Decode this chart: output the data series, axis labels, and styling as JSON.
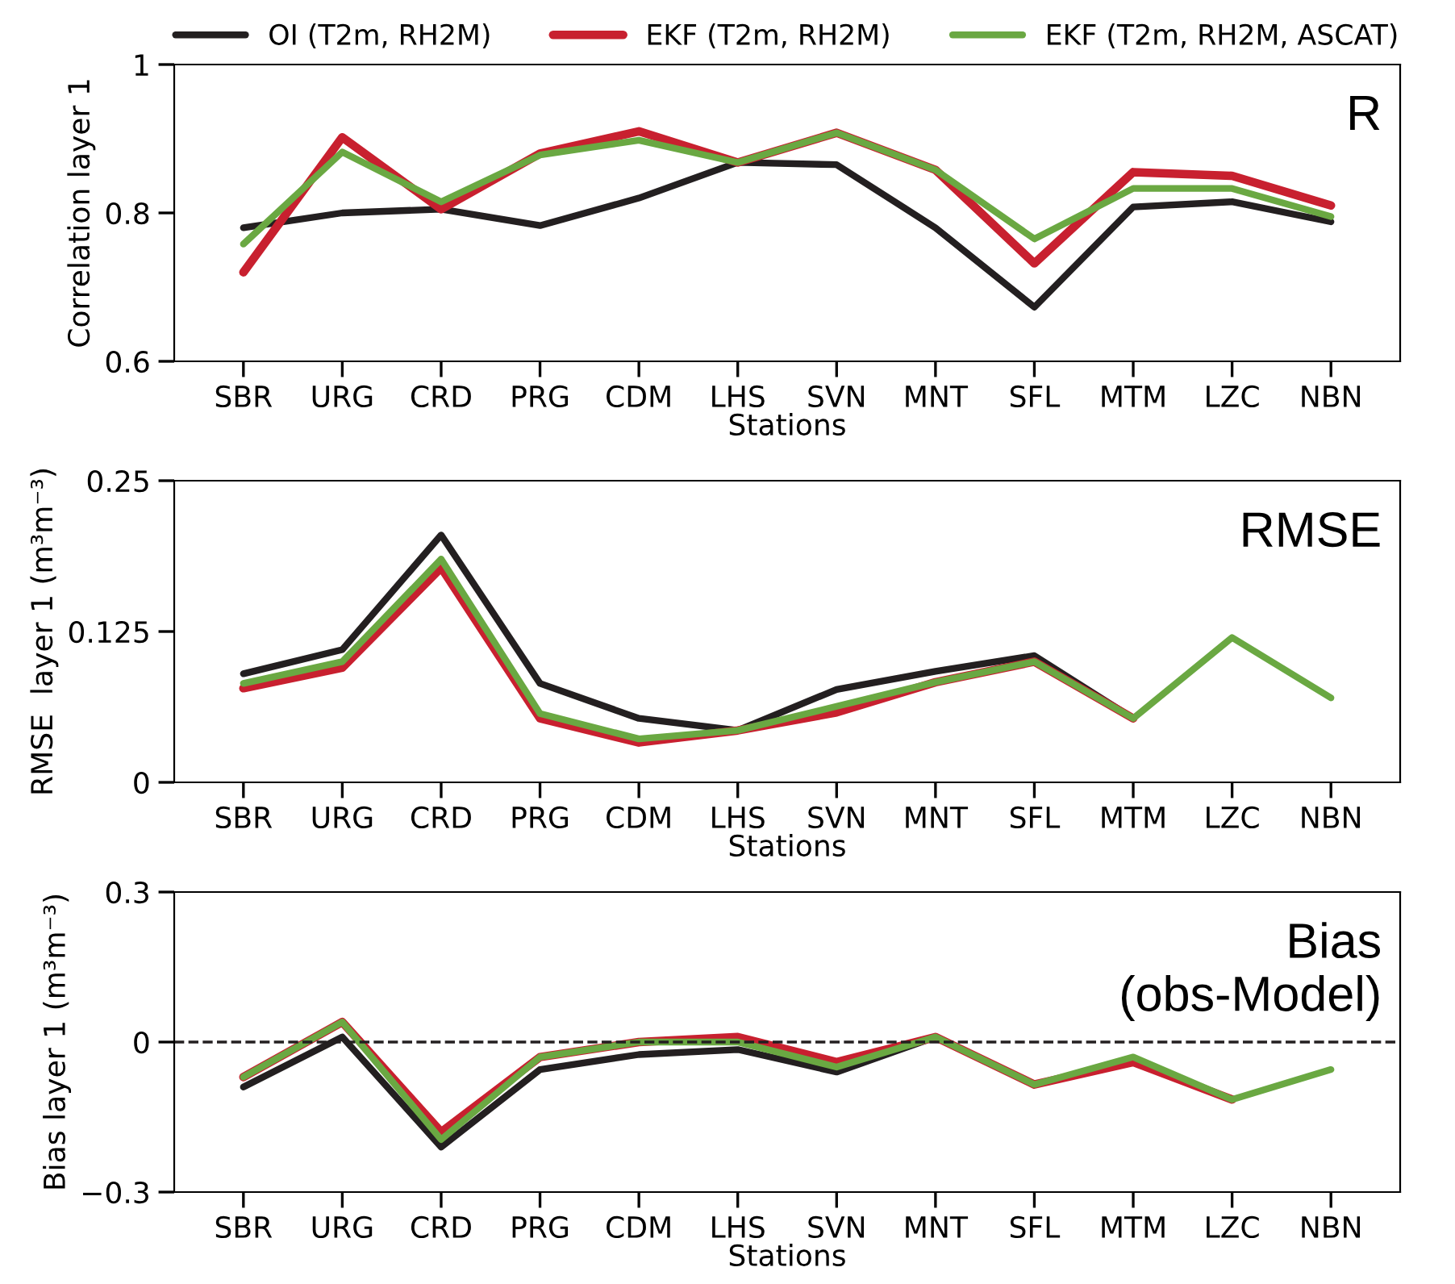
{
  "chart_data": [
    {
      "type": "line",
      "categories": [
        "SBR",
        "URG",
        "CRD",
        "PRG",
        "CDM",
        "LHS",
        "SVN",
        "MNT",
        "SFL",
        "MTM",
        "LZC",
        "NBN"
      ],
      "xlabel": "Stations",
      "ylabel": "Correlation layer 1",
      "ylim": [
        0.6,
        1
      ],
      "yticks": [
        0.6,
        0.8,
        1
      ],
      "legend": "top",
      "annotations": [
        "R"
      ],
      "series": [
        {
          "name": "OI (T2m, RH2M)",
          "color": "#231f20",
          "values": [
            0.78,
            0.8,
            0.805,
            0.783,
            0.82,
            0.868,
            0.865,
            0.78,
            0.673,
            0.808,
            0.815,
            0.788
          ]
        },
        {
          "name": "EKF (T2m, RH2M)",
          "color": "#c8202f",
          "values": [
            0.72,
            0.902,
            0.805,
            0.88,
            0.91,
            0.868,
            0.908,
            0.858,
            0.732,
            0.855,
            0.85,
            0.81
          ]
        },
        {
          "name": "EKF (T2m, RH2M, ASCAT)",
          "color": "#6aa842",
          "values": [
            0.758,
            0.882,
            0.815,
            0.878,
            0.898,
            0.868,
            0.908,
            0.858,
            0.765,
            0.833,
            0.833,
            0.795
          ]
        }
      ]
    },
    {
      "type": "line",
      "categories": [
        "SBR",
        "URG",
        "CRD",
        "PRG",
        "CDM",
        "LHS",
        "SVN",
        "MNT",
        "SFL",
        "MTM",
        "LZC",
        "NBN"
      ],
      "xlabel": "Stations",
      "ylabel": "RMSE  layer 1 (m³m⁻³)",
      "ylim": [
        0,
        0.25
      ],
      "yticks": [
        0,
        0.125,
        0.25
      ],
      "annotations": [
        "RMSE"
      ],
      "series": [
        {
          "color": "#231f20",
          "values": [
            0.09,
            0.11,
            0.205,
            0.082,
            0.053,
            0.043,
            0.077,
            0.092,
            0.105,
            0.053,
            null,
            null
          ]
        },
        {
          "color": "#c8202f",
          "values": [
            0.078,
            0.095,
            0.178,
            0.053,
            0.033,
            0.043,
            0.058,
            0.083,
            0.1,
            0.053,
            null,
            null
          ]
        },
        {
          "color": "#6aa842",
          "values": [
            0.082,
            0.1,
            0.185,
            0.057,
            0.036,
            0.043,
            0.063,
            0.083,
            0.1,
            0.053,
            0.12,
            0.07
          ]
        }
      ]
    },
    {
      "type": "line",
      "categories": [
        "SBR",
        "URG",
        "CRD",
        "PRG",
        "CDM",
        "LHS",
        "SVN",
        "MNT",
        "SFL",
        "MTM",
        "LZC",
        "NBN"
      ],
      "xlabel": "Stations",
      "ylabel": "Bias layer 1 (m³m⁻³)",
      "ylim": [
        -0.3,
        0.3
      ],
      "yticks": [
        {
          "value": -0.3,
          "label": "−0.3"
        },
        0,
        0.3
      ],
      "annotations": [
        "Bias\n(obs-Model)"
      ],
      "ref_lines": [
        {
          "axis": "y",
          "value": 0,
          "color": "#231f20",
          "line_style": "dashed"
        }
      ],
      "series": [
        {
          "color": "#231f20",
          "values": [
            -0.09,
            0.01,
            -0.21,
            -0.055,
            -0.025,
            -0.015,
            -0.06,
            0.01,
            null,
            null,
            null,
            null
          ]
        },
        {
          "color": "#c8202f",
          "values": [
            -0.07,
            0.04,
            -0.18,
            -0.03,
            0,
            0.01,
            -0.04,
            0.01,
            -0.085,
            -0.04,
            -0.115,
            null
          ]
        },
        {
          "color": "#6aa842",
          "values": [
            -0.07,
            0.04,
            -0.195,
            -0.03,
            0,
            0,
            -0.05,
            0.01,
            -0.085,
            -0.03,
            -0.115,
            -0.055
          ]
        }
      ]
    }
  ]
}
